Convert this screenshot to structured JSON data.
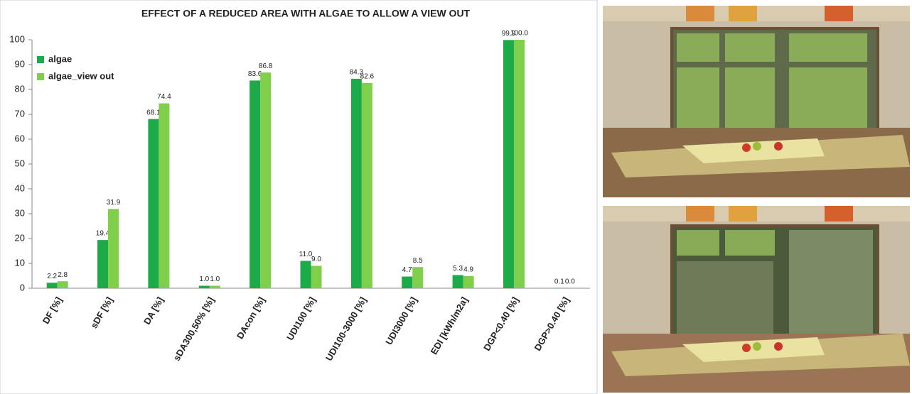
{
  "chart_data": {
    "type": "bar",
    "title": "EFFECT OF A REDUCED AREA WITH ALGAE TO ALLOW A VIEW OUT",
    "categories": [
      "DF [%]",
      "sDF [%]",
      "DA [%]",
      "sDA300,50% [%]",
      "DAcon [%]",
      "UDI100 [%]",
      "UDI100-3000 [%]",
      "UDI3000 [%]",
      "EDI [kWh/m2a]",
      "DGP<0.40 [%]",
      "DGP>0.40 [%]"
    ],
    "series": [
      {
        "name": "algae",
        "color": "#1daa48",
        "values": [
          2.2,
          19.4,
          68.1,
          1.0,
          83.6,
          11.0,
          84.3,
          4.7,
          5.3,
          99.9,
          0.1
        ],
        "value_labels": [
          "2.2",
          "19.4",
          "68.1",
          "1.0",
          "83.6",
          "11.0",
          "84.3",
          "4.7",
          "5.3",
          "99.9",
          "0.1"
        ]
      },
      {
        "name": "algae_view out",
        "color": "#7fcf4b",
        "values": [
          2.8,
          31.9,
          74.4,
          1.0,
          86.8,
          9.0,
          82.6,
          8.5,
          4.9,
          100.0,
          0.0
        ],
        "value_labels": [
          "2.8",
          "31.9",
          "74.4",
          "1.0",
          "86.8",
          "9.0",
          "82.6",
          "8.5",
          "4.9",
          "100.0",
          "0.0"
        ]
      }
    ],
    "ylim": [
      0,
      100
    ],
    "yticks": [
      0,
      10,
      20,
      30,
      40,
      50,
      60,
      70,
      80,
      90,
      100
    ],
    "grid": false,
    "legend": "top-left"
  }
}
